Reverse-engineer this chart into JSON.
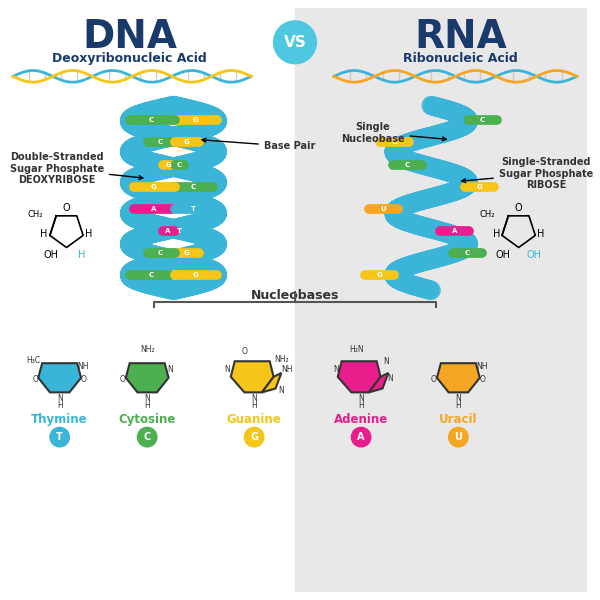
{
  "title_dna": "DNA",
  "title_rna": "RNA",
  "subtitle_dna": "Deoxyribonucleic Acid",
  "subtitle_rna": "Ribonucleic Acid",
  "vs_text": "VS",
  "bg_left": "#ffffff",
  "bg_right": "#e8e8e8",
  "dna_color": "#1a3a6b",
  "rna_color": "#1a3a6b",
  "title_color": "#1a3a6b",
  "subtitle_color": "#1a3a6b",
  "vs_bg": "#4dc8e0",
  "vs_color": "#ffffff",
  "helix_color": "#3ab5d8",
  "base_colors": {
    "G": "#f5c518",
    "C": "#4caf50",
    "A": "#e91e8c",
    "T": "#3ab5d8",
    "U": "#f5a623"
  },
  "nucleobases": [
    "Thymine",
    "Cytosine",
    "Guanine",
    "Adenine",
    "Uracil"
  ],
  "nucleobase_letters": [
    "T",
    "C",
    "G",
    "A",
    "U"
  ],
  "nucleobase_colors": [
    "#3ab5d8",
    "#4caf50",
    "#f5c518",
    "#e91e8c",
    "#f5a623"
  ],
  "label_double": "Double-Stranded\nSugar Phosphate\nDEOXYRIBOSE",
  "label_single": "Single-Stranded\nSugar Phosphate\nRIBOSE",
  "label_base_pair": "Base Pair",
  "label_single_nucleo": "Single\nNucleobase",
  "label_nucleobases": "Nucleobases",
  "annotation_color": "#333333",
  "dna_bracket_color": "#555555"
}
